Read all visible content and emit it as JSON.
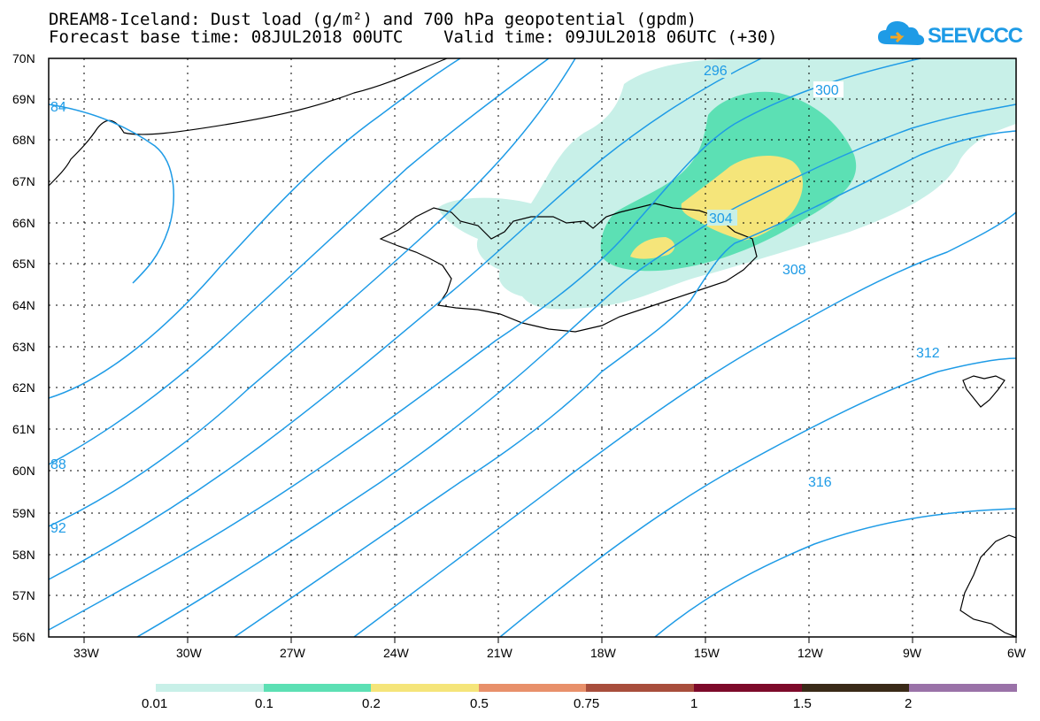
{
  "header": {
    "title_line1": "DREAM8-Iceland: Dust load (g/m²) and 700 hPa geopotential (gpdm)",
    "title_line2": "Forecast base time: 08JUL2018 00UTC    Valid time: 09JUL2018 06UTC (+30)"
  },
  "logo": {
    "text": "SEEVCCC",
    "color": "#1e9be6",
    "icon": "cloud-icon"
  },
  "map": {
    "lat_labels": [
      "70N",
      "69N",
      "68N",
      "67N",
      "66N",
      "65N",
      "64N",
      "63N",
      "62N",
      "61N",
      "60N",
      "59N",
      "58N",
      "57N",
      "56N"
    ],
    "lon_labels": [
      "33W",
      "30W",
      "27W",
      "24W",
      "21W",
      "18W",
      "15W",
      "12W",
      "9W",
      "6W"
    ],
    "contour_color": "#1e9be6",
    "contour_labels": [
      "296",
      "300",
      "304",
      "308",
      "312",
      "316",
      "84",
      "88",
      "92"
    ]
  },
  "colorbar": {
    "colors": [
      "#c8f0e8",
      "#5ce0b4",
      "#f5e57a",
      "#e8906a",
      "#a84e3c",
      "#7d0a2a",
      "#3a2a18",
      "#9a72a8"
    ],
    "labels": [
      "0.01",
      "0.1",
      "0.2",
      "0.5",
      "0.75",
      "1",
      "1.5",
      "2"
    ]
  }
}
